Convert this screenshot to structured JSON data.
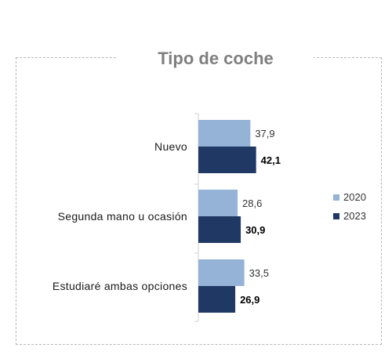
{
  "chart_data": {
    "type": "bar",
    "orientation": "horizontal",
    "title": "Tipo de coche",
    "categories": [
      "Nuevo",
      "Segunda mano u ocasión",
      "Estudiaré ambas opciones"
    ],
    "series": [
      {
        "name": "2020",
        "values": [
          37.9,
          28.6,
          33.5
        ],
        "labels": [
          "37,9",
          "28,6",
          "33,5"
        ],
        "color": "#95b3d7",
        "bold_labels": false
      },
      {
        "name": "2023",
        "values": [
          42.1,
          30.9,
          26.9
        ],
        "labels": [
          "42,1",
          "30,9",
          "26,9"
        ],
        "color": "#1f3864",
        "bold_labels": true
      }
    ],
    "legend_position": "right",
    "grid": false,
    "xlim": [
      0,
      60
    ]
  }
}
